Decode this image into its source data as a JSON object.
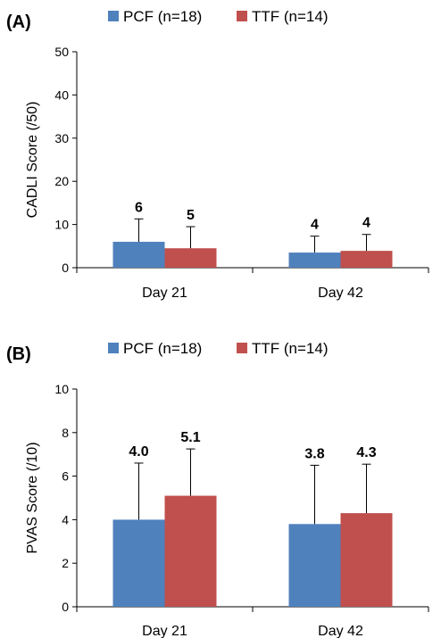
{
  "colors": {
    "PCF": "#4f81bd",
    "TTF": "#c0504d"
  },
  "chart_data": [
    {
      "type": "bar",
      "panel_label": "(A)",
      "ylabel": "CADLI Score (/50)",
      "ylim": [
        0,
        50
      ],
      "yticks": [
        0,
        10,
        20,
        30,
        40,
        50
      ],
      "categories": [
        "Day 21",
        "Day 42"
      ],
      "legend_position": "top",
      "grid": false,
      "series": [
        {
          "name": "PCF (n=18)",
          "color_key": "PCF",
          "values": [
            6,
            3.5
          ],
          "error_upper": [
            11.3,
            7.3
          ],
          "labels": [
            "6",
            "4"
          ]
        },
        {
          "name": "TTF (n=14)",
          "color_key": "TTF",
          "values": [
            4.5,
            3.9
          ],
          "error_upper": [
            9.5,
            7.7
          ],
          "labels": [
            "5",
            "4"
          ]
        }
      ]
    },
    {
      "type": "bar",
      "panel_label": "(B)",
      "ylabel": "PVAS Score (/10)",
      "ylim": [
        0,
        10
      ],
      "yticks": [
        0,
        2,
        4,
        6,
        8,
        10
      ],
      "categories": [
        "Day 21",
        "Day 42"
      ],
      "legend_position": "top",
      "grid": false,
      "series": [
        {
          "name": "PCF (n=18)",
          "color_key": "PCF",
          "values": [
            4.0,
            3.8
          ],
          "error_upper": [
            6.6,
            6.5
          ],
          "labels": [
            "4.0",
            "3.8"
          ]
        },
        {
          "name": "TTF (n=14)",
          "color_key": "TTF",
          "values": [
            5.1,
            4.3
          ],
          "error_upper": [
            7.25,
            6.55
          ],
          "labels": [
            "5.1",
            "4.3"
          ]
        }
      ]
    }
  ]
}
